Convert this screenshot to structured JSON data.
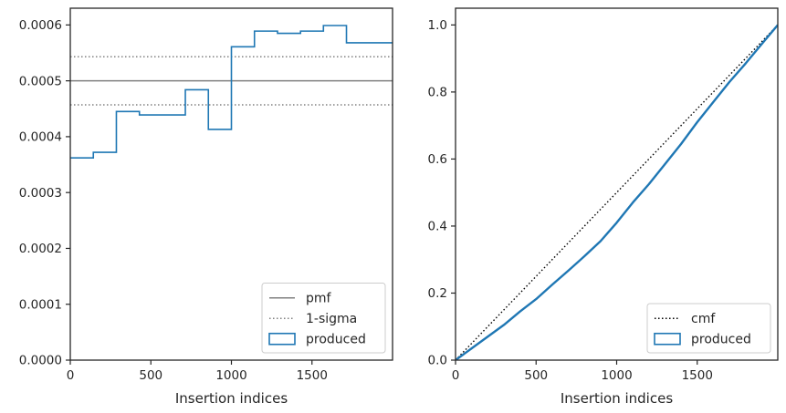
{
  "chart_data": [
    {
      "type": "line",
      "xlabel": "Insertion indices",
      "ylabel": "",
      "xlim": [
        0,
        2000
      ],
      "ylim": [
        0,
        0.00063
      ],
      "xticks": [
        0,
        500,
        1000,
        1500
      ],
      "xtick_labels": [
        "0",
        "500",
        "1000",
        "1500"
      ],
      "yticks": [
        0,
        0.0001,
        0.0002,
        0.0003,
        0.0004,
        0.0005,
        0.0006
      ],
      "ytick_labels": [
        "0.0000",
        "0.0001",
        "0.0002",
        "0.0003",
        "0.0004",
        "0.0005",
        "0.0006"
      ],
      "pmf": 0.0005,
      "sigma_band": [
        0.000457,
        0.000543
      ],
      "histogram": {
        "name": "produced",
        "bin_edges": [
          0,
          143,
          286,
          429,
          571,
          714,
          857,
          1000,
          1143,
          1286,
          1429,
          1571,
          1714,
          2000
        ],
        "values": [
          0.000362,
          0.000372,
          0.000445,
          0.000439,
          0.000439,
          0.000484,
          0.000413,
          0.000561,
          0.000589,
          0.000585,
          0.000589,
          0.000599,
          0.000568
        ]
      },
      "legend": {
        "position": "lower right",
        "entries": [
          {
            "label": "pmf",
            "style": "solid-line",
            "color": "#808080"
          },
          {
            "label": "1-sigma",
            "style": "dotted-line",
            "color": "#808080"
          },
          {
            "label": "produced",
            "style": "patch",
            "color": "#1f77b4"
          }
        ]
      },
      "colors": {
        "histogram": "#1f77b4",
        "reference": "#808080"
      }
    },
    {
      "type": "line",
      "xlabel": "Insertion indices",
      "ylabel": "",
      "xlim": [
        0,
        2000
      ],
      "ylim": [
        0,
        1.05
      ],
      "xticks": [
        0,
        500,
        1000,
        1500
      ],
      "xtick_labels": [
        "0",
        "500",
        "1000",
        "1500"
      ],
      "yticks": [
        0,
        0.2,
        0.4,
        0.6,
        0.8,
        1.0
      ],
      "ytick_labels": [
        "0.0",
        "0.2",
        "0.4",
        "0.6",
        "0.8",
        "1.0"
      ],
      "cmf": {
        "name": "cmf",
        "x": [
          0,
          2000
        ],
        "y": [
          0,
          1.0
        ]
      },
      "produced": {
        "name": "produced",
        "x": [
          0,
          100,
          200,
          300,
          400,
          500,
          600,
          700,
          800,
          900,
          1000,
          1100,
          1200,
          1300,
          1400,
          1500,
          1600,
          1700,
          1800,
          1900,
          2000
        ],
        "y": [
          0,
          0.035,
          0.07,
          0.105,
          0.145,
          0.182,
          0.225,
          0.267,
          0.31,
          0.355,
          0.41,
          0.47,
          0.525,
          0.585,
          0.645,
          0.71,
          0.77,
          0.83,
          0.885,
          0.943,
          1.0
        ]
      },
      "legend": {
        "position": "lower right",
        "entries": [
          {
            "label": "cmf",
            "style": "dotted-line",
            "color": "#000000"
          },
          {
            "label": "produced",
            "style": "patch",
            "color": "#1f77b4"
          }
        ]
      },
      "colors": {
        "produced": "#1f77b4",
        "cmf": "#000000"
      }
    }
  ]
}
